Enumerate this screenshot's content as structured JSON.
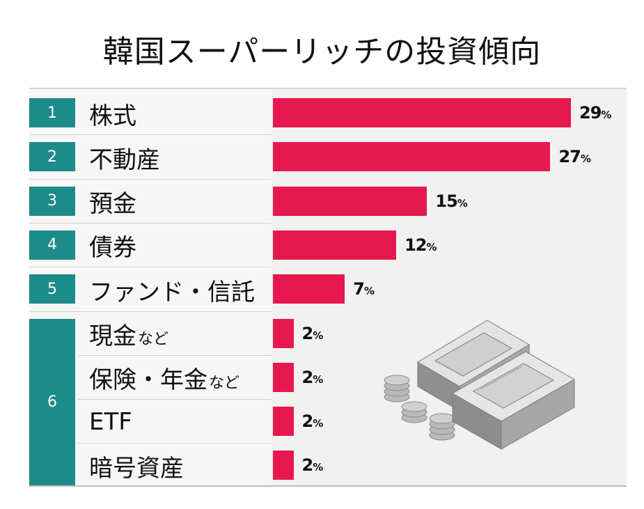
{
  "title": "韓国スーパーリッチの投資傾向",
  "chart_data": {
    "type": "bar",
    "orientation": "horizontal",
    "rows": [
      {
        "rank": "1",
        "label": "株式",
        "suffix": "",
        "value": 29
      },
      {
        "rank": "2",
        "label": "不動産",
        "suffix": "",
        "value": 27
      },
      {
        "rank": "3",
        "label": "預金",
        "suffix": "",
        "value": 15
      },
      {
        "rank": "4",
        "label": "債券",
        "suffix": "",
        "value": 12
      },
      {
        "rank": "5",
        "label": "ファンド・信託",
        "suffix": "",
        "value": 7
      },
      {
        "rank": "6",
        "label": "現金",
        "suffix": "など",
        "value": 2
      },
      {
        "rank": "",
        "label": "保険・年金",
        "suffix": "など",
        "value": 2
      },
      {
        "rank": "",
        "label": "ETF",
        "suffix": "",
        "value": 2
      },
      {
        "rank": "",
        "label": "暗号資産",
        "suffix": "",
        "value": 2
      }
    ],
    "value_unit": "%",
    "max": 29,
    "colors": {
      "bar": "#e5194f",
      "rank_box": "#1d8b89"
    }
  }
}
